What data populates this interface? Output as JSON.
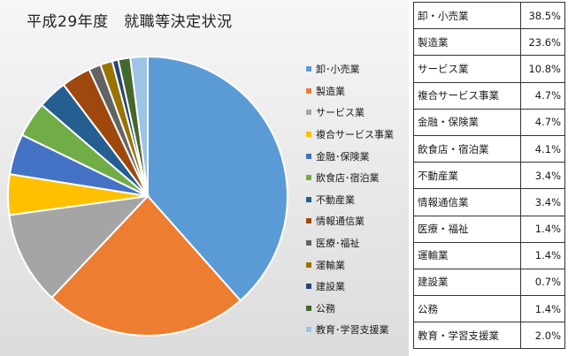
{
  "chart_data": {
    "type": "pie",
    "title": "平成29年度　就職等決定状況",
    "slices": [
      {
        "label": "卸・小売業",
        "value": 38.5,
        "value_text": "38.5%",
        "color": "#5b9bd5"
      },
      {
        "label": "製造業",
        "value": 23.6,
        "value_text": "23.6%",
        "color": "#ed7d31"
      },
      {
        "label": "サービス業",
        "value": 10.8,
        "value_text": "10.8%",
        "color": "#a5a5a5"
      },
      {
        "label": "複合サービス事業",
        "value": 4.7,
        "value_text": "4.7%",
        "color": "#ffc000"
      },
      {
        "label": "金融・保険業",
        "value": 4.7,
        "value_text": "4.7%",
        "color": "#4472c4"
      },
      {
        "label": "飲食店・宿泊業",
        "value": 4.1,
        "value_text": "4.1%",
        "color": "#70ad47"
      },
      {
        "label": "不動産業",
        "value": 3.4,
        "value_text": "3.4%",
        "color": "#255e91"
      },
      {
        "label": "情報通信業",
        "value": 3.4,
        "value_text": "3.4%",
        "color": "#9e480e"
      },
      {
        "label": "医療・福祉",
        "value": 1.4,
        "value_text": "1.4%",
        "color": "#636363"
      },
      {
        "label": "運輸業",
        "value": 1.4,
        "value_text": "1.4%",
        "color": "#997300"
      },
      {
        "label": "建設業",
        "value": 0.7,
        "value_text": "0.7%",
        "color": "#264478"
      },
      {
        "label": "公務",
        "value": 1.4,
        "value_text": "1.4%",
        "color": "#43682b"
      },
      {
        "label": "教育・学習支援業",
        "value": 2.0,
        "value_text": "2.0%",
        "color": "#9dc3e6"
      }
    ],
    "legend_position": "right",
    "legend_labels": [
      "卸･小売業",
      "製造業",
      "サービス業",
      "複合サービス事業",
      "金融･保険業",
      "飲食店･宿泊業",
      "不動産業",
      "情報通信業",
      "医療･福祉",
      "運輸業",
      "建設業",
      "公務",
      "教育･学習支援業"
    ]
  }
}
